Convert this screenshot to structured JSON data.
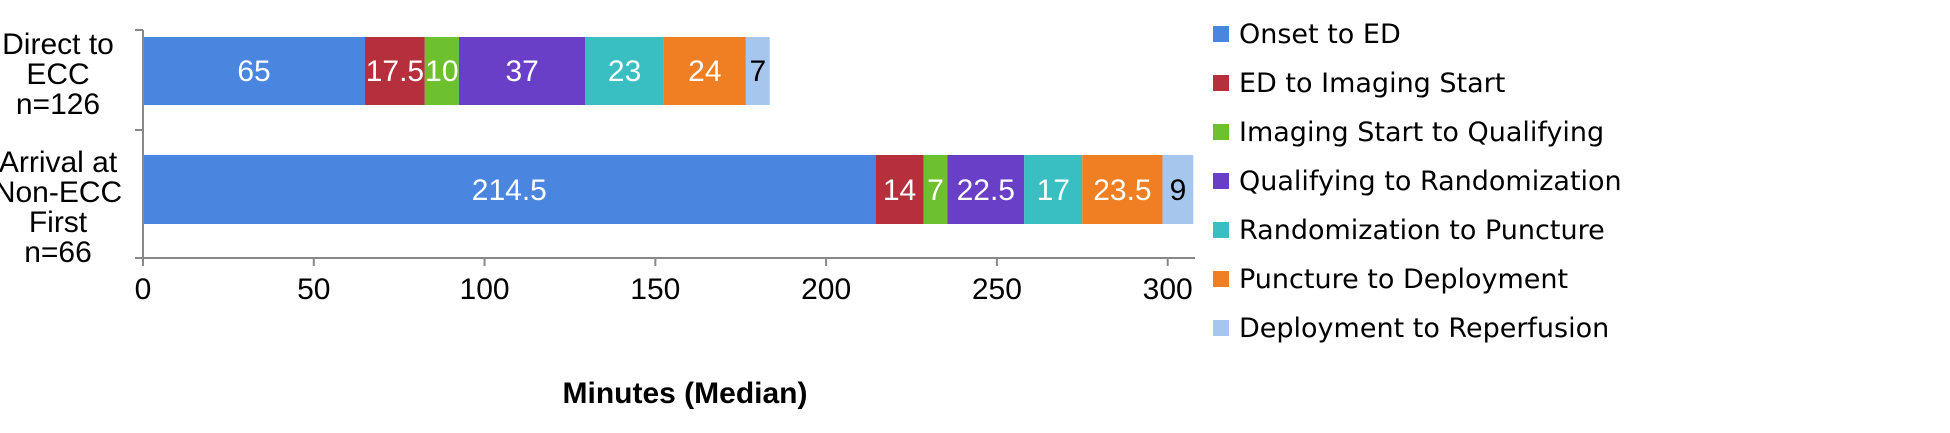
{
  "chart_data": {
    "type": "bar",
    "orientation": "horizontal",
    "stacked": true,
    "categories": [
      [
        "Direct to",
        "ECC",
        "n=126"
      ],
      [
        "Arrival at",
        "Non-ECC",
        "First",
        "n=66"
      ]
    ],
    "series": [
      {
        "name": "Onset to ED",
        "color": "#4A86E0",
        "label_color": "#ffffff",
        "values": [
          65,
          214.5
        ]
      },
      {
        "name": "ED to Imaging Start",
        "color": "#B5303C",
        "label_color": "#ffffff",
        "values": [
          17.5,
          14
        ]
      },
      {
        "name": "Imaging Start to Qualifying",
        "color": "#6DC02E",
        "label_color": "#ffffff",
        "values": [
          10,
          7
        ]
      },
      {
        "name": "Qualifying to Randomization",
        "color": "#6A3FC8",
        "label_color": "#ffffff",
        "values": [
          37,
          22.5
        ]
      },
      {
        "name": "Randomization to Puncture",
        "color": "#39BFC2",
        "label_color": "#ffffff",
        "values": [
          23,
          17
        ]
      },
      {
        "name": "Puncture to Deployment",
        "color": "#F07E22",
        "label_color": "#ffffff",
        "values": [
          24,
          23.5
        ]
      },
      {
        "name": "Deployment to Reperfusion",
        "color": "#A6C6EE",
        "label_color": "#000000",
        "values": [
          7,
          9
        ]
      }
    ],
    "data_labels": [
      [
        "65",
        "17.5",
        "10",
        "37",
        "23",
        "24",
        "7"
      ],
      [
        "214.5",
        "14",
        "7",
        "22.5",
        "17",
        "23.5",
        "9"
      ]
    ],
    "xlabel": "Minutes (Median)",
    "ylabel": "",
    "xlim": [
      0,
      308
    ],
    "xticks": [
      "0",
      "50",
      "100",
      "150",
      "200",
      "250",
      "300"
    ],
    "tick_values": [
      0,
      50,
      100,
      150,
      200,
      250,
      300
    ],
    "grid": false,
    "legend_position": "right"
  }
}
